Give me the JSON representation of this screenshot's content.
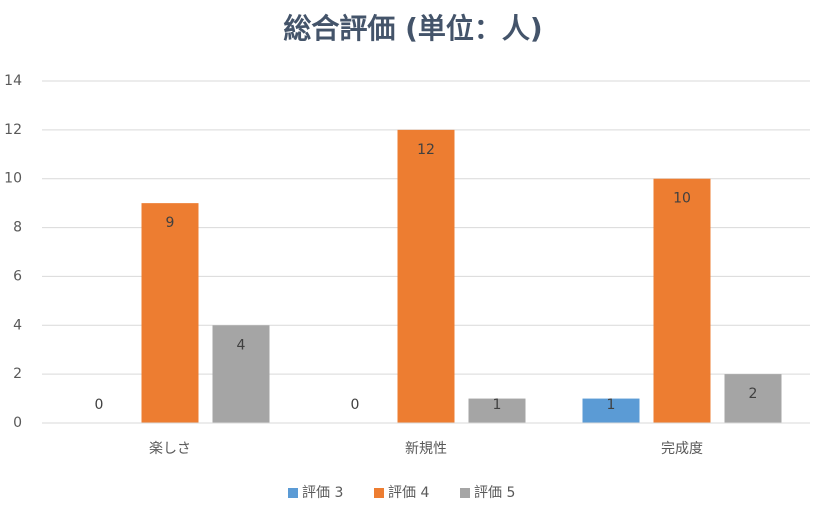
{
  "chart_data": {
    "type": "bar",
    "title": "総合評価 (単位：人)",
    "categories": [
      "楽しさ",
      "新規性",
      "完成度"
    ],
    "series": [
      {
        "name": "評価 3",
        "color": "#5b9bd5",
        "values": [
          0,
          0,
          1
        ]
      },
      {
        "name": "評価 4",
        "color": "#ed7d31",
        "values": [
          9,
          12,
          10
        ]
      },
      {
        "name": "評価 5",
        "color": "#a5a5a5",
        "values": [
          4,
          1,
          2
        ]
      }
    ],
    "ylim": [
      0,
      14
    ],
    "yticks": [
      0,
      2,
      4,
      6,
      8,
      10,
      12,
      14
    ],
    "grid": true,
    "legend": "bottom"
  }
}
